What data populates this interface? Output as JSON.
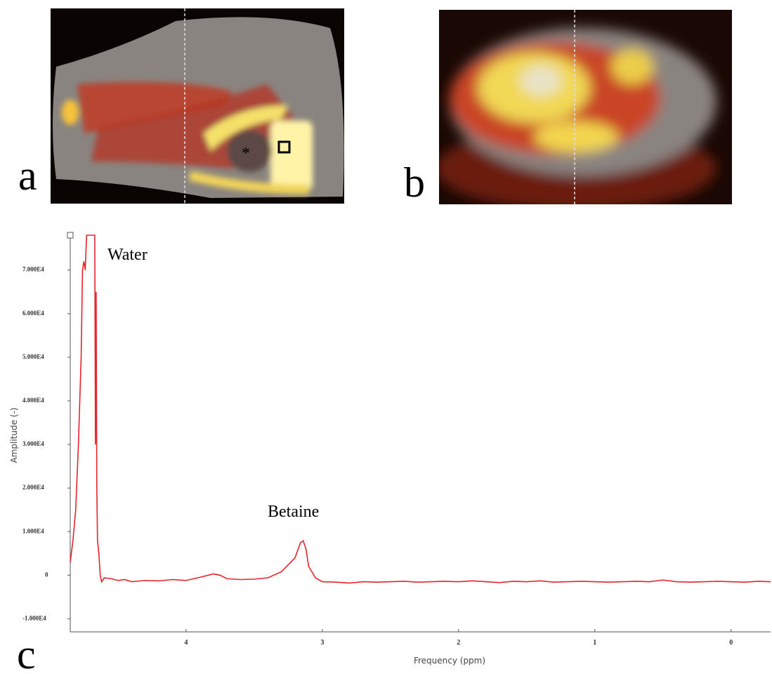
{
  "panels": [
    {
      "label": "a",
      "marker": "*"
    },
    {
      "label": "b"
    },
    {
      "label": "c"
    }
  ],
  "chart_data": {
    "type": "line",
    "xlabel": "Frequency (ppm)",
    "ylabel": "Amplitude (-)",
    "annotations": [
      "Water",
      "Betaine"
    ],
    "color": "#e8242a",
    "x": [
      4.85,
      4.83,
      4.81,
      4.79,
      4.77,
      4.76,
      4.75,
      4.74,
      4.73,
      4.7,
      4.67,
      4.665,
      4.66,
      4.655,
      4.65,
      4.64,
      4.63,
      4.62,
      4.6,
      4.55,
      4.5,
      4.45,
      4.4,
      4.3,
      4.2,
      4.1,
      4.0,
      3.9,
      3.8,
      3.75,
      3.7,
      3.6,
      3.5,
      3.4,
      3.3,
      3.2,
      3.16,
      3.14,
      3.12,
      3.1,
      3.05,
      3.0,
      2.9,
      2.8,
      2.7,
      2.6,
      2.5,
      2.4,
      2.3,
      2.2,
      2.1,
      2.0,
      1.9,
      1.8,
      1.7,
      1.6,
      1.5,
      1.4,
      1.3,
      1.2,
      1.1,
      1.0,
      0.9,
      0.8,
      0.7,
      0.6,
      0.5,
      0.4,
      0.3,
      0.2,
      0.1,
      0.0,
      -0.1,
      -0.2,
      -0.29
    ],
    "values": [
      3000,
      8000,
      15000,
      30000,
      50000,
      70000,
      72000,
      70000,
      78000,
      78000,
      78000,
      30000,
      65000,
      20000,
      8000,
      5000,
      0,
      -1500,
      -600,
      -800,
      -1200,
      -1000,
      -1500,
      -1200,
      -1300,
      -1000,
      -1200,
      -500,
      300,
      0,
      -800,
      -1000,
      -900,
      -600,
      800,
      4000,
      7500,
      7900,
      6000,
      2000,
      -600,
      -1500,
      -1600,
      -1800,
      -1500,
      -1600,
      -1500,
      -1400,
      -1600,
      -1500,
      -1400,
      -1500,
      -1300,
      -1500,
      -1700,
      -1400,
      -1500,
      -1300,
      -1600,
      -1500,
      -1400,
      -1500,
      -1600,
      -1500,
      -1400,
      -1500,
      -1100,
      -1500,
      -1600,
      -1500,
      -1400,
      -1500,
      -1600,
      -1400,
      -1500
    ],
    "xlim": [
      4.85,
      -0.29
    ],
    "xticks": [
      4,
      3,
      2,
      1,
      0
    ],
    "ylim": [
      -13000,
      78000
    ],
    "yticks": [
      {
        "value": -10000,
        "label": "-1.000E4"
      },
      0,
      {
        "value": 10000,
        "label": "1.000E4"
      },
      {
        "value": 20000,
        "label": "2.000E4"
      },
      {
        "value": 30000,
        "label": "3.000E4"
      },
      {
        "value": 40000,
        "label": "4.000E4"
      },
      {
        "value": 50000,
        "label": "5.000E4"
      },
      {
        "value": 60000,
        "label": "6.000E4"
      },
      {
        "value": 70000,
        "label": "7.000E4"
      }
    ],
    "grid": false
  }
}
